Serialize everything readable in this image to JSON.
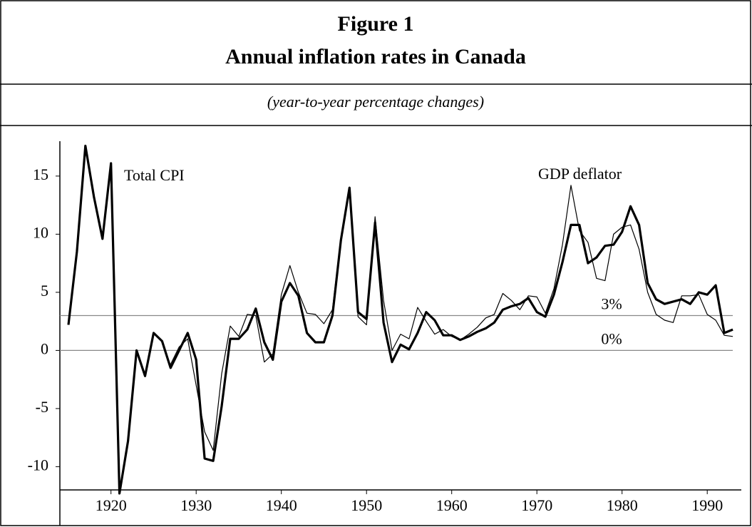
{
  "chart_data": {
    "type": "line",
    "title": "Figure 1",
    "subtitle": "Annual inflation rates in Canada",
    "note": "(year-to-year percentage changes)",
    "x": [
      1915,
      1916,
      1917,
      1918,
      1919,
      1920,
      1921,
      1922,
      1923,
      1924,
      1925,
      1926,
      1927,
      1928,
      1929,
      1930,
      1931,
      1932,
      1933,
      1934,
      1935,
      1936,
      1937,
      1938,
      1939,
      1940,
      1941,
      1942,
      1943,
      1944,
      1945,
      1946,
      1947,
      1948,
      1949,
      1950,
      1951,
      1952,
      1953,
      1954,
      1955,
      1956,
      1957,
      1958,
      1959,
      1960,
      1961,
      1962,
      1963,
      1964,
      1965,
      1966,
      1967,
      1968,
      1969,
      1970,
      1971,
      1972,
      1973,
      1974,
      1975,
      1976,
      1977,
      1978,
      1979,
      1980,
      1981,
      1982,
      1983,
      1984,
      1985,
      1986,
      1987,
      1988,
      1989,
      1990,
      1991,
      1992,
      1993
    ],
    "series": [
      {
        "name": "Total CPI",
        "color": "#000000",
        "values": [
          2.2,
          8.5,
          17.6,
          13.2,
          9.6,
          16.1,
          -12.3,
          -7.8,
          0,
          -2.2,
          1.5,
          0.8,
          -1.5,
          0,
          1.5,
          -0.8,
          -9.3,
          -9.5,
          -4.8,
          1.0,
          1.0,
          1.8,
          3.6,
          0.7,
          -0.8,
          4.2,
          5.8,
          4.7,
          1.5,
          0.7,
          0.7,
          3.0,
          9.5,
          14.0,
          3.3,
          2.7,
          11.0,
          2.4,
          -1.0,
          0.5,
          0.1,
          1.5,
          3.3,
          2.6,
          1.3,
          1.3,
          0.9,
          1.2,
          1.6,
          1.9,
          2.4,
          3.5,
          3.8,
          4.0,
          4.5,
          3.3,
          2.9,
          4.8,
          7.6,
          10.8,
          10.8,
          7.5,
          8.0,
          9.0,
          9.1,
          10.2,
          12.4,
          10.8,
          5.8,
          4.4,
          4.0,
          4.2,
          4.4,
          4.0,
          5.0,
          4.8,
          5.6,
          1.5,
          1.8
        ]
      },
      {
        "name": "GDP deflator",
        "color": "#000000",
        "values": [
          null,
          null,
          null,
          null,
          null,
          null,
          null,
          null,
          null,
          null,
          null,
          null,
          -1.2,
          0.3,
          1.0,
          -3.0,
          -7.0,
          -8.6,
          -2.0,
          2.1,
          1.2,
          3.1,
          3.0,
          -1.0,
          -0.3,
          4.8,
          7.3,
          5.0,
          3.2,
          3.1,
          2.3,
          3.5,
          9.8,
          13.6,
          2.9,
          2.2,
          11.5,
          4.3,
          0.0,
          1.4,
          1.0,
          3.7,
          2.5,
          1.4,
          1.8,
          1.2,
          0.9,
          1.4,
          2.0,
          2.8,
          3.1,
          4.9,
          4.3,
          3.5,
          4.7,
          4.6,
          3.2,
          5.3,
          9.1,
          14.2,
          10.3,
          9.3,
          6.2,
          6.0,
          10.0,
          10.6,
          10.8,
          8.7,
          5.0,
          3.1,
          2.6,
          2.4,
          4.7,
          4.7,
          4.8,
          3.1,
          2.6,
          1.3,
          1.2
        ]
      }
    ],
    "reference_lines": [
      {
        "value": 3,
        "label": "3%",
        "color": "#888888"
      },
      {
        "value": 0,
        "label": "0%",
        "color": "#888888"
      }
    ],
    "xlim": [
      1914,
      1994
    ],
    "xticks": [
      1920,
      1930,
      1940,
      1950,
      1960,
      1970,
      1980,
      1990
    ],
    "ylim": [
      -12,
      18
    ],
    "yticks": [
      -10,
      -5,
      0,
      5,
      10,
      15
    ]
  }
}
